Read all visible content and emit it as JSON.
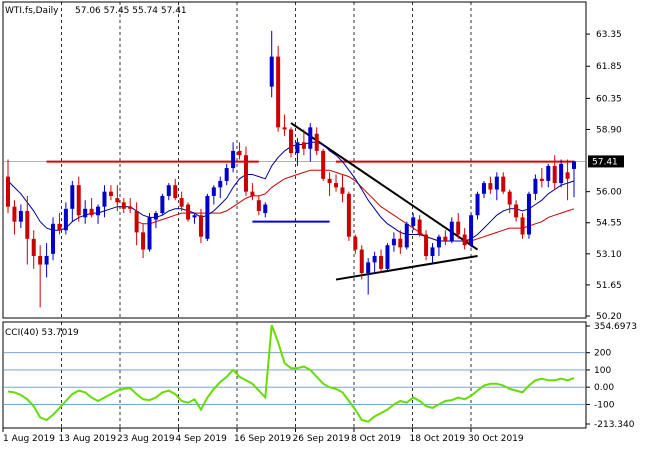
{
  "chart_data": [
    {
      "type": "candlestick",
      "title": "WTI.fs,Daily",
      "ohlc_header": "57.06 57.45 55.74 57.41",
      "ylim": [
        50.2,
        64.1
      ],
      "y_ticks": [
        "63.35",
        "61.85",
        "60.35",
        "58.90",
        "57.41",
        "56.00",
        "54.55",
        "53.10",
        "51.65",
        "50.20"
      ],
      "current_price": "57.41",
      "x_ticks": [
        "1 Aug 2019",
        "13 Aug 2019",
        "23 Aug 2019",
        "4 Sep 2019",
        "16 Sep 2019",
        "26 Sep 2019",
        "8 Oct 2019",
        "18 Oct 2019",
        "30 Oct 2019"
      ],
      "candles": [
        [
          56.7,
          57.5,
          55.0,
          55.3
        ],
        [
          55.3,
          55.6,
          54.0,
          54.6
        ],
        [
          54.6,
          55.4,
          54.3,
          55.1
        ],
        [
          55.1,
          55.8,
          52.6,
          53.8
        ],
        [
          53.8,
          54.2,
          52.4,
          53.0
        ],
        [
          53.0,
          53.5,
          50.6,
          52.6
        ],
        [
          52.6,
          53.6,
          52.0,
          53.0
        ],
        [
          53.1,
          54.8,
          52.8,
          54.5
        ],
        [
          54.5,
          55.0,
          54.0,
          54.2
        ],
        [
          54.2,
          55.5,
          54.0,
          55.2
        ],
        [
          55.2,
          56.5,
          54.6,
          56.3
        ],
        [
          56.3,
          56.7,
          54.6,
          54.9
        ],
        [
          54.8,
          55.6,
          54.5,
          55.2
        ],
        [
          55.2,
          55.7,
          54.8,
          54.9
        ],
        [
          54.9,
          55.4,
          54.5,
          55.3
        ],
        [
          55.3,
          56.3,
          54.8,
          56.0
        ],
        [
          56.0,
          56.3,
          55.6,
          55.8
        ],
        [
          55.7,
          56.3,
          55.1,
          55.5
        ],
        [
          55.5,
          55.7,
          55.0,
          55.2
        ],
        [
          55.3,
          55.7,
          55.0,
          55.2
        ],
        [
          55.1,
          55.5,
          53.5,
          54.1
        ],
        [
          54.1,
          54.5,
          52.9,
          53.3
        ],
        [
          53.3,
          55.0,
          53.2,
          54.8
        ],
        [
          54.7,
          55.1,
          54.3,
          55.0
        ],
        [
          55.0,
          55.9,
          54.9,
          55.8
        ],
        [
          55.8,
          56.4,
          55.6,
          56.3
        ],
        [
          56.3,
          56.6,
          55.6,
          55.7
        ],
        [
          55.7,
          56.0,
          55.1,
          55.3
        ],
        [
          55.4,
          55.5,
          54.6,
          54.7
        ],
        [
          54.8,
          55.0,
          54.5,
          54.9
        ],
        [
          54.9,
          55.2,
          53.6,
          53.9
        ],
        [
          53.8,
          55.9,
          53.7,
          55.8
        ],
        [
          55.8,
          56.3,
          55.4,
          56.2
        ],
        [
          56.2,
          56.7,
          55.7,
          56.5
        ],
        [
          56.5,
          57.3,
          56.3,
          57.1
        ],
        [
          57.1,
          58.3,
          56.9,
          57.9
        ],
        [
          57.9,
          58.3,
          57.5,
          57.7
        ],
        [
          57.7,
          58.1,
          55.8,
          56.0
        ],
        [
          56.0,
          56.4,
          55.6,
          55.8
        ],
        [
          55.6,
          55.8,
          54.9,
          55.1
        ],
        [
          55.0,
          55.5,
          54.8,
          55.4
        ],
        [
          60.9,
          63.5,
          60.4,
          62.3
        ],
        [
          62.3,
          62.8,
          58.8,
          59.0
        ],
        [
          59.0,
          59.6,
          58.6,
          58.9
        ],
        [
          58.9,
          59.0,
          57.6,
          57.8
        ],
        [
          57.8,
          58.5,
          57.2,
          58.3
        ],
        [
          58.3,
          58.9,
          57.7,
          58.0
        ],
        [
          58.0,
          59.2,
          57.4,
          59.0
        ],
        [
          58.7,
          59.0,
          57.7,
          57.9
        ],
        [
          57.9,
          58.0,
          56.5,
          56.6
        ],
        [
          56.6,
          56.9,
          55.8,
          56.4
        ],
        [
          56.4,
          56.8,
          56.0,
          56.2
        ],
        [
          56.2,
          56.8,
          55.5,
          55.9
        ],
        [
          55.9,
          56.0,
          53.7,
          53.9
        ],
        [
          53.9,
          54.0,
          53.1,
          53.3
        ],
        [
          53.3,
          53.5,
          51.9,
          52.2
        ],
        [
          52.2,
          52.9,
          51.2,
          52.7
        ],
        [
          52.7,
          53.2,
          52.2,
          53.0
        ],
        [
          53.0,
          53.3,
          52.2,
          52.4
        ],
        [
          52.4,
          53.6,
          52.3,
          53.5
        ],
        [
          53.5,
          54.1,
          53.2,
          53.8
        ],
        [
          53.8,
          54.2,
          53.1,
          53.4
        ],
        [
          53.4,
          54.6,
          53.3,
          54.5
        ],
        [
          54.4,
          55.0,
          54.2,
          54.8
        ],
        [
          54.7,
          54.9,
          53.9,
          54.0
        ],
        [
          54.0,
          54.2,
          52.8,
          53.0
        ],
        [
          53.0,
          53.6,
          52.7,
          53.4
        ],
        [
          53.4,
          54.0,
          53.0,
          53.9
        ],
        [
          53.9,
          54.2,
          53.5,
          53.7
        ],
        [
          53.7,
          54.8,
          53.6,
          54.6
        ],
        [
          54.6,
          55.0,
          53.8,
          54.0
        ],
        [
          54.0,
          54.3,
          53.3,
          53.5
        ],
        [
          53.5,
          55.0,
          53.4,
          54.9
        ],
        [
          54.9,
          56.0,
          54.7,
          55.9
        ],
        [
          55.9,
          56.5,
          55.7,
          56.4
        ],
        [
          56.4,
          56.7,
          55.9,
          56.1
        ],
        [
          56.1,
          56.9,
          55.6,
          56.7
        ],
        [
          56.7,
          56.9,
          55.9,
          56.0
        ],
        [
          56.0,
          56.1,
          55.0,
          55.4
        ],
        [
          55.4,
          55.6,
          54.6,
          54.8
        ],
        [
          54.8,
          55.0,
          53.8,
          54.0
        ],
        [
          54.0,
          56.0,
          53.8,
          55.9
        ],
        [
          55.9,
          56.8,
          55.6,
          56.6
        ],
        [
          56.6,
          57.1,
          56.2,
          56.5
        ],
        [
          56.5,
          57.3,
          56.2,
          57.2
        ],
        [
          57.2,
          57.7,
          56.1,
          56.4
        ],
        [
          56.4,
          57.5,
          56.2,
          57.3
        ],
        [
          56.9,
          57.5,
          55.6,
          56.6
        ],
        [
          57.06,
          57.45,
          55.74,
          57.41
        ]
      ],
      "ma_fast": [
        56.5,
        56.2,
        55.9,
        55.5,
        55.1,
        54.6,
        54.3,
        54.2,
        54.2,
        54.3,
        54.6,
        54.8,
        54.9,
        55.0,
        55.0,
        55.1,
        55.2,
        55.3,
        55.3,
        55.3,
        55.1,
        54.9,
        54.8,
        54.8,
        54.9,
        55.1,
        55.2,
        55.2,
        55.1,
        55.0,
        54.8,
        54.9,
        55.1,
        55.4,
        55.7,
        56.2,
        56.6,
        56.8,
        56.8,
        56.7,
        56.6,
        57.2,
        57.6,
        57.9,
        58.1,
        58.2,
        58.2,
        58.3,
        58.3,
        58.2,
        57.9,
        57.7,
        57.4,
        57.0,
        56.6,
        56.1,
        55.6,
        55.2,
        54.8,
        54.5,
        54.3,
        54.1,
        54.0,
        54.0,
        54.0,
        53.9,
        53.8,
        53.7,
        53.7,
        53.7,
        53.7,
        53.7,
        53.8,
        54.0,
        54.3,
        54.6,
        54.9,
        55.1,
        55.2,
        55.2,
        55.1,
        55.2,
        55.4,
        55.6,
        55.9,
        56.1,
        56.3,
        56.4,
        56.5
      ],
      "ma_slow": [
        null,
        null,
        null,
        null,
        null,
        null,
        null,
        null,
        null,
        null,
        null,
        null,
        null,
        null,
        null,
        null,
        null,
        null,
        null,
        null,
        54.6,
        54.5,
        54.5,
        54.6,
        54.7,
        54.8,
        54.9,
        55.0,
        55.0,
        55.0,
        55.0,
        55.0,
        55.0,
        55.0,
        55.1,
        55.3,
        55.5,
        55.7,
        55.8,
        55.8,
        55.9,
        56.2,
        56.4,
        56.6,
        56.7,
        56.8,
        56.9,
        57.0,
        57.0,
        57.0,
        57.0,
        56.9,
        56.8,
        56.7,
        56.5,
        56.2,
        55.9,
        55.6,
        55.3,
        55.1,
        54.9,
        54.7,
        54.5,
        54.3,
        54.1,
        53.9,
        53.8,
        53.7,
        53.7,
        53.7,
        53.7,
        53.7,
        53.7,
        53.8,
        53.9,
        54.0,
        54.1,
        54.2,
        54.3,
        54.3,
        54.3,
        54.4,
        54.5,
        54.6,
        54.8,
        54.9,
        55.0,
        55.1,
        55.2
      ],
      "support_lines": [
        {
          "y": 57.4,
          "from": 6,
          "to": 39,
          "color": "#dd0000"
        },
        {
          "y": 57.4,
          "from": 51,
          "to": 88,
          "color": "#dd0000"
        },
        {
          "y": 54.6,
          "from": 38,
          "to": 50,
          "color": "#0000dd"
        }
      ],
      "triangle": {
        "upper": [
          [
            44,
            59.2
          ],
          [
            73,
            53.3
          ]
        ],
        "lower": [
          [
            51,
            51.9
          ],
          [
            73,
            53.0
          ]
        ]
      }
    },
    {
      "type": "line",
      "title": "CCI(40) 53.7019",
      "ylim": [
        -213.34,
        354.6973
      ],
      "y_ticks": [
        "354.6973",
        "200",
        "100",
        "0.00",
        "-100",
        "-213.340"
      ],
      "levels": [
        200,
        100,
        0,
        -100
      ],
      "values": [
        -25,
        -30,
        -45,
        -70,
        -110,
        -175,
        -190,
        -160,
        -120,
        -80,
        -40,
        -20,
        -30,
        -60,
        -80,
        -60,
        -40,
        -20,
        -10,
        -5,
        -40,
        -70,
        -75,
        -60,
        -30,
        -20,
        -40,
        -80,
        -90,
        -70,
        -130,
        -60,
        -10,
        30,
        60,
        100,
        60,
        40,
        20,
        -20,
        -60,
        360,
        260,
        140,
        110,
        110,
        120,
        100,
        60,
        20,
        0,
        -10,
        -30,
        -80,
        -130,
        -190,
        -200,
        -170,
        -150,
        -130,
        -100,
        -80,
        -90,
        -60,
        -80,
        -110,
        -120,
        -100,
        -80,
        -75,
        -60,
        -70,
        -50,
        -20,
        10,
        20,
        20,
        10,
        -10,
        -20,
        -30,
        10,
        40,
        50,
        40,
        40,
        50,
        40,
        53.7
      ]
    }
  ],
  "colors": {
    "ma_fast": "#000099",
    "ma_slow": "#cc0000",
    "cci": "#66dd00",
    "sar": "#dd0000",
    "support_blue": "#0000dd"
  }
}
